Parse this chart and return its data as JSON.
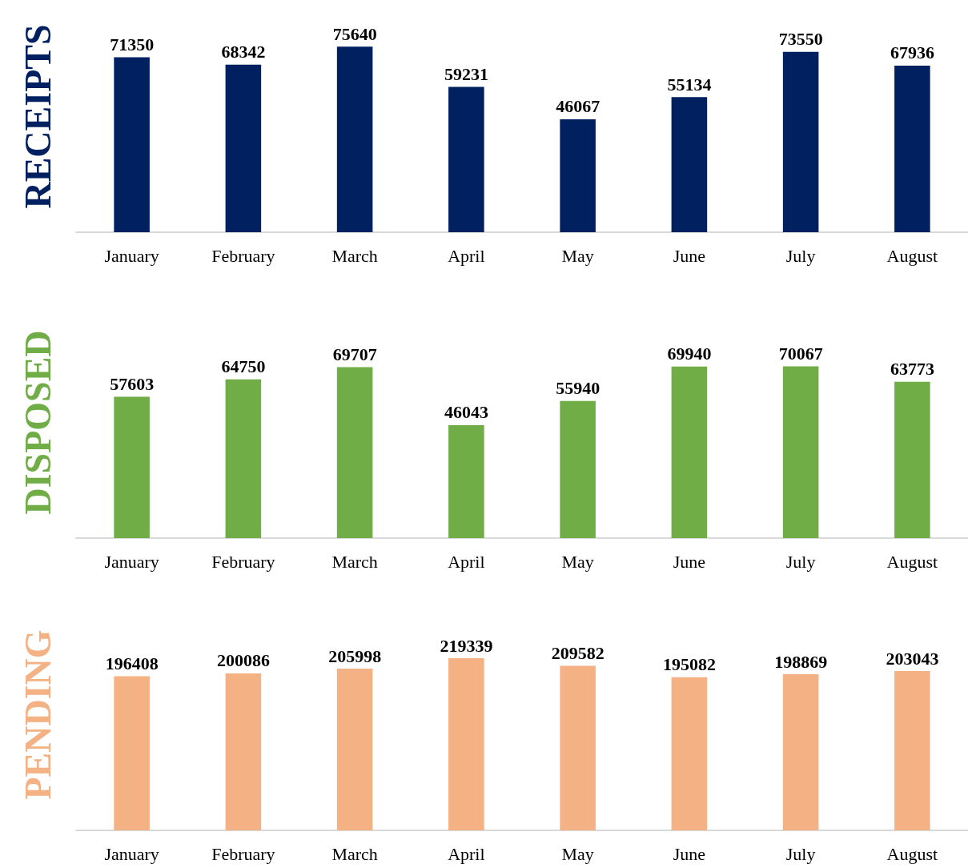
{
  "chart_data": [
    {
      "type": "bar",
      "title": "RECEIPTS",
      "categories": [
        "January",
        "February",
        "March",
        "April",
        "May",
        "June",
        "July",
        "August"
      ],
      "series": [
        {
          "color": "#002060",
          "values": [
            71350,
            68342,
            75640,
            59231,
            46067,
            55134,
            73550,
            67936
          ]
        }
      ],
      "data_labels": true
    },
    {
      "type": "bar",
      "title": "DISPOSED",
      "categories": [
        "January",
        "February",
        "March",
        "April",
        "May",
        "June",
        "July",
        "August"
      ],
      "series": [
        {
          "color": "#70ad47",
          "values": [
            57603,
            64750,
            69707,
            46043,
            55940,
            69940,
            70067,
            63773
          ]
        }
      ],
      "data_labels": true
    },
    {
      "type": "bar",
      "title": "PENDING",
      "categories": [
        "January",
        "February",
        "March",
        "April",
        "May",
        "June",
        "July",
        "August"
      ],
      "series": [
        {
          "color": "#f4b183",
          "values": [
            196408,
            200086,
            205998,
            219339,
            209582,
            195082,
            198869,
            203043
          ]
        }
      ],
      "data_labels": true
    }
  ]
}
